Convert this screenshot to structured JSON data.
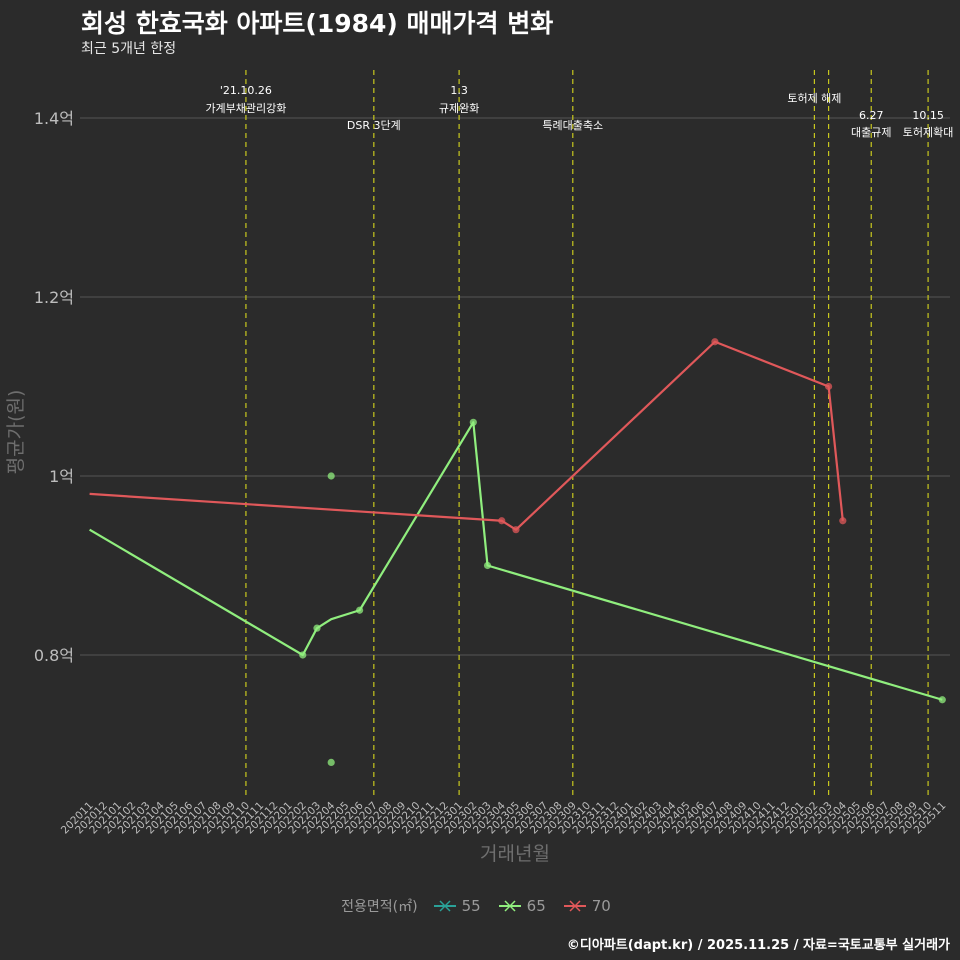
{
  "header": {
    "title": "회성 한효국화 아파트(1984) 매매가격 변화",
    "subtitle": "최근 5개년 한정"
  },
  "caption": "©디아파트(dapt.kr) / 2025.11.25 / 자료=국토교통부 실거래가",
  "colors": {
    "background": "#2b2b2b",
    "grid": "#555555",
    "event_line": "#c8c81e",
    "s55": "#2aa198",
    "s65": "#90ee7e",
    "s70": "#e0585a",
    "axis_text": "#bdbdbd"
  },
  "chart_data": {
    "type": "line",
    "title": "회성 한효국화 아파트(1984) 매매가격 변화",
    "xlabel": "거래년월",
    "ylabel": "평균가(원)",
    "ylim": [
      0.65,
      1.47
    ],
    "yticks": [
      {
        "value": 0.8,
        "label": "0.8억"
      },
      {
        "value": 1.0,
        "label": "1억"
      },
      {
        "value": 1.2,
        "label": "1.2억"
      },
      {
        "value": 1.4,
        "label": "1.4억"
      }
    ],
    "x_categories": [
      "202011",
      "202012",
      "202101",
      "202102",
      "202103",
      "202104",
      "202105",
      "202106",
      "202107",
      "202108",
      "202109",
      "202110",
      "202111",
      "202112",
      "202201",
      "202202",
      "202203",
      "202204",
      "202205",
      "202206",
      "202207",
      "202208",
      "202209",
      "202210",
      "202211",
      "202212",
      "202301",
      "202302",
      "202303",
      "202304",
      "202305",
      "202306",
      "202307",
      "202308",
      "202309",
      "202310",
      "202311",
      "202312",
      "202401",
      "202402",
      "202403",
      "202404",
      "202405",
      "202406",
      "202407",
      "202408",
      "202409",
      "202410",
      "202411",
      "202412",
      "202501",
      "202502",
      "202503",
      "202504",
      "202505",
      "202506",
      "202507",
      "202508",
      "202509",
      "202510",
      "202511"
    ],
    "legend_title": "전용면적(㎡)",
    "legend": [
      "55",
      "65",
      "70"
    ],
    "series": [
      {
        "name": "65",
        "line": [
          [
            "202011",
            0.94
          ],
          [
            "202202",
            0.8
          ],
          [
            "202203",
            0.83
          ],
          [
            "202204",
            0.84
          ],
          [
            "202206",
            0.85
          ],
          [
            "202302",
            1.06
          ],
          [
            "202303",
            0.9
          ],
          [
            "202511",
            0.75
          ]
        ],
        "points": [
          [
            "202202",
            0.8
          ],
          [
            "202203",
            0.83
          ],
          [
            "202204",
            1.0
          ],
          [
            "202204",
            0.68
          ],
          [
            "202206",
            0.85
          ],
          [
            "202302",
            1.06
          ],
          [
            "202303",
            0.9
          ],
          [
            "202511",
            0.75
          ]
        ]
      },
      {
        "name": "70",
        "line": [
          [
            "202011",
            0.98
          ],
          [
            "202304",
            0.95
          ],
          [
            "202305",
            0.94
          ],
          [
            "202407",
            1.15
          ],
          [
            "202503",
            1.1
          ],
          [
            "202504",
            0.95
          ]
        ],
        "points": [
          [
            "202304",
            0.95
          ],
          [
            "202305",
            0.94
          ],
          [
            "202407",
            1.15
          ],
          [
            "202503",
            1.1
          ],
          [
            "202504",
            0.95
          ]
        ]
      }
    ],
    "events": [
      {
        "x": "202110",
        "line1": "'21.10.26",
        "line2": "가계부채관리강화",
        "row": "top"
      },
      {
        "x": "202207",
        "line1": "",
        "line2": "DSR 3단계",
        "row": "low"
      },
      {
        "x": "202301",
        "line1": "1.3",
        "line2": "규제완화",
        "row": "top"
      },
      {
        "x": "202309",
        "line1": "",
        "line2": "특례대출축소",
        "row": "low"
      },
      {
        "x": "202502",
        "line1": "",
        "line2": "토허제 해제",
        "row": "mid"
      },
      {
        "x": "202503",
        "line1": "",
        "line2": "",
        "row": "none"
      },
      {
        "x": "202506",
        "line1": "6.27",
        "line2": "대출규제",
        "row": "bottom"
      },
      {
        "x": "202510",
        "line1": "10.15",
        "line2": "토허제확대",
        "row": "bottom"
      }
    ]
  }
}
